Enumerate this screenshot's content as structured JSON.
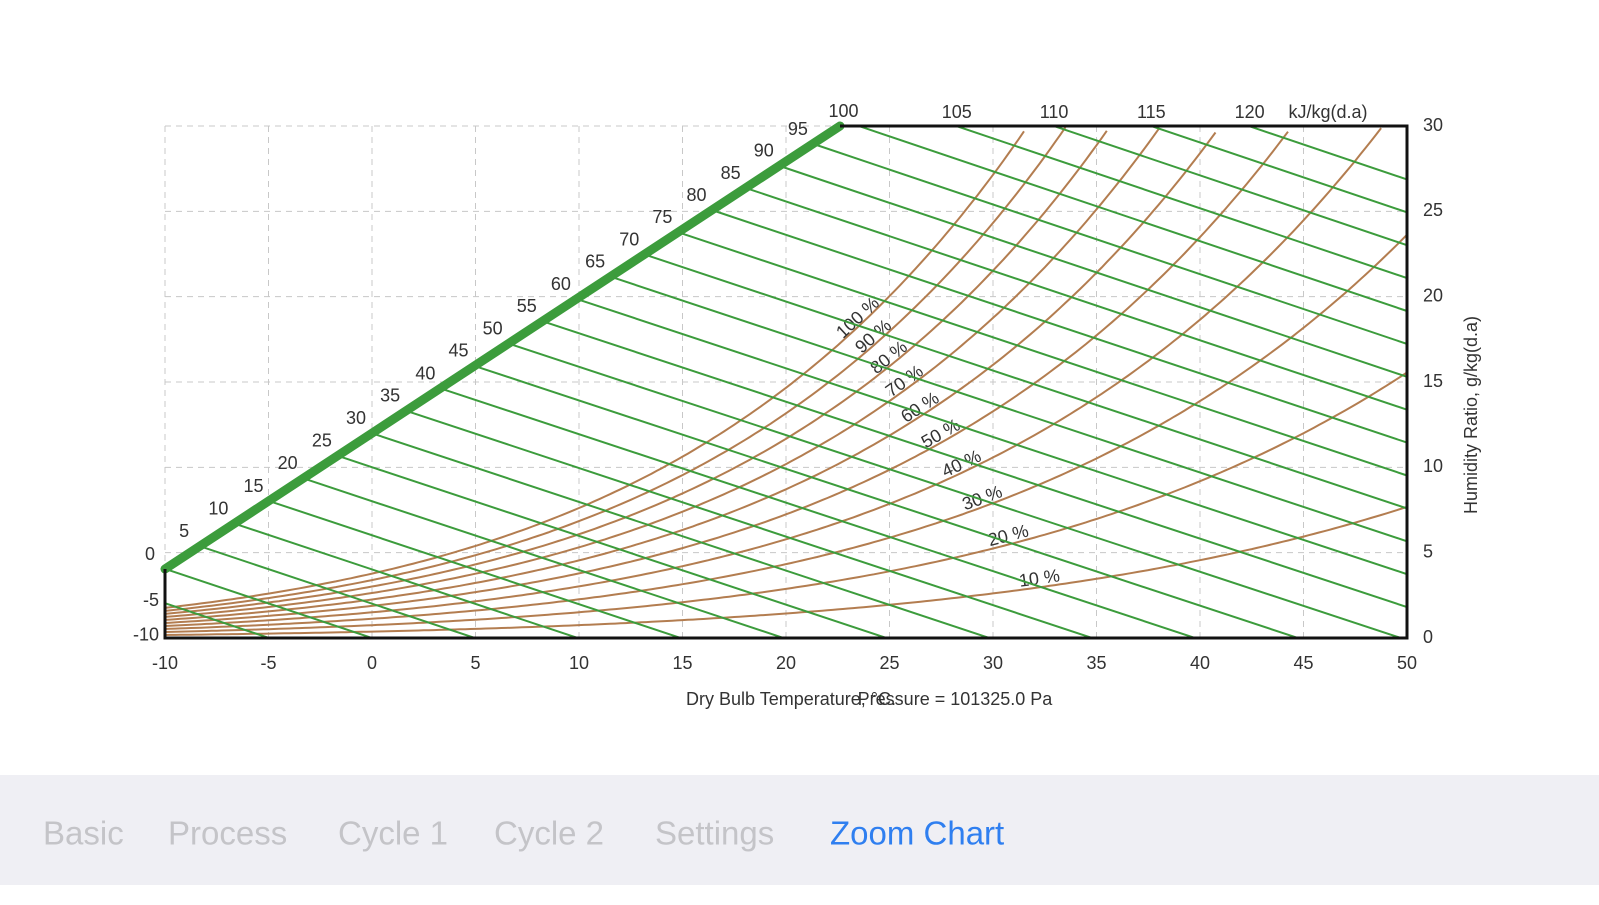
{
  "chart_data": {
    "type": "psychrometric",
    "xlim": [
      -10,
      50
    ],
    "xticks": [
      -10,
      -5,
      0,
      5,
      10,
      15,
      20,
      25,
      30,
      35,
      40,
      45,
      50
    ],
    "ylim": [
      0,
      30
    ],
    "yticks": [
      0,
      5,
      10,
      15,
      20,
      25,
      30
    ],
    "x_label": "Dry Bulb Temperature, °C.",
    "pressure": {
      "value": 101325.0,
      "label": "Pressure =  101325.0 Pa"
    },
    "y_label": "Humidity Ratio, g/kg(d.a)",
    "enthalpy_ticks": [
      -10,
      -5,
      0,
      5,
      10,
      15,
      20,
      25,
      30,
      35,
      40,
      45,
      50,
      55,
      60,
      65,
      70,
      75,
      80,
      85,
      90,
      95,
      100,
      105,
      110,
      115,
      120
    ],
    "enthalpy_unit": "kJ/kg(d.a)",
    "enthalpy_color": "#3c9c3c",
    "rh_lines": {
      "values": [
        100,
        90,
        80,
        70,
        60,
        50,
        40,
        30,
        20,
        10
      ],
      "value_labels": [
        "100 %",
        "90 %",
        "80 %",
        "70 %",
        "60 %",
        "50 %",
        "40 %",
        "30 %",
        "20 %",
        "10 %"
      ],
      "color": "#b37d50"
    },
    "grid": true
  },
  "tab_bar": {
    "tabs": [
      "Basic",
      "Process",
      "Cycle 1",
      "Cycle 2",
      "Settings",
      "Zoom Chart"
    ],
    "selected": 5
  }
}
